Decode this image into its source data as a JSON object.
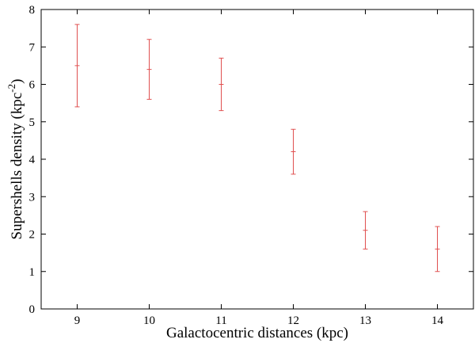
{
  "chart_data": {
    "type": "errorbar",
    "xlabel": "Galactocentric distances (kpc)",
    "ylabel": {
      "text": "Supershells density (kpc",
      "sup": "-2",
      "end": ")"
    },
    "x": [
      9,
      10,
      11,
      12,
      13,
      14
    ],
    "series": [
      {
        "color": "#e05050",
        "values": [
          6.5,
          6.4,
          6.0,
          4.2,
          2.1,
          1.6
        ],
        "errors": [
          1.1,
          0.8,
          0.7,
          0.6,
          0.5,
          0.6
        ]
      }
    ],
    "xlim": [
      8.5,
      14.5
    ],
    "xticks": [
      9,
      10,
      11,
      12,
      13,
      14
    ],
    "ylim": [
      0,
      8
    ],
    "yticks": [
      0,
      1,
      2,
      3,
      4,
      5,
      6,
      7,
      8
    ],
    "grid": false
  }
}
